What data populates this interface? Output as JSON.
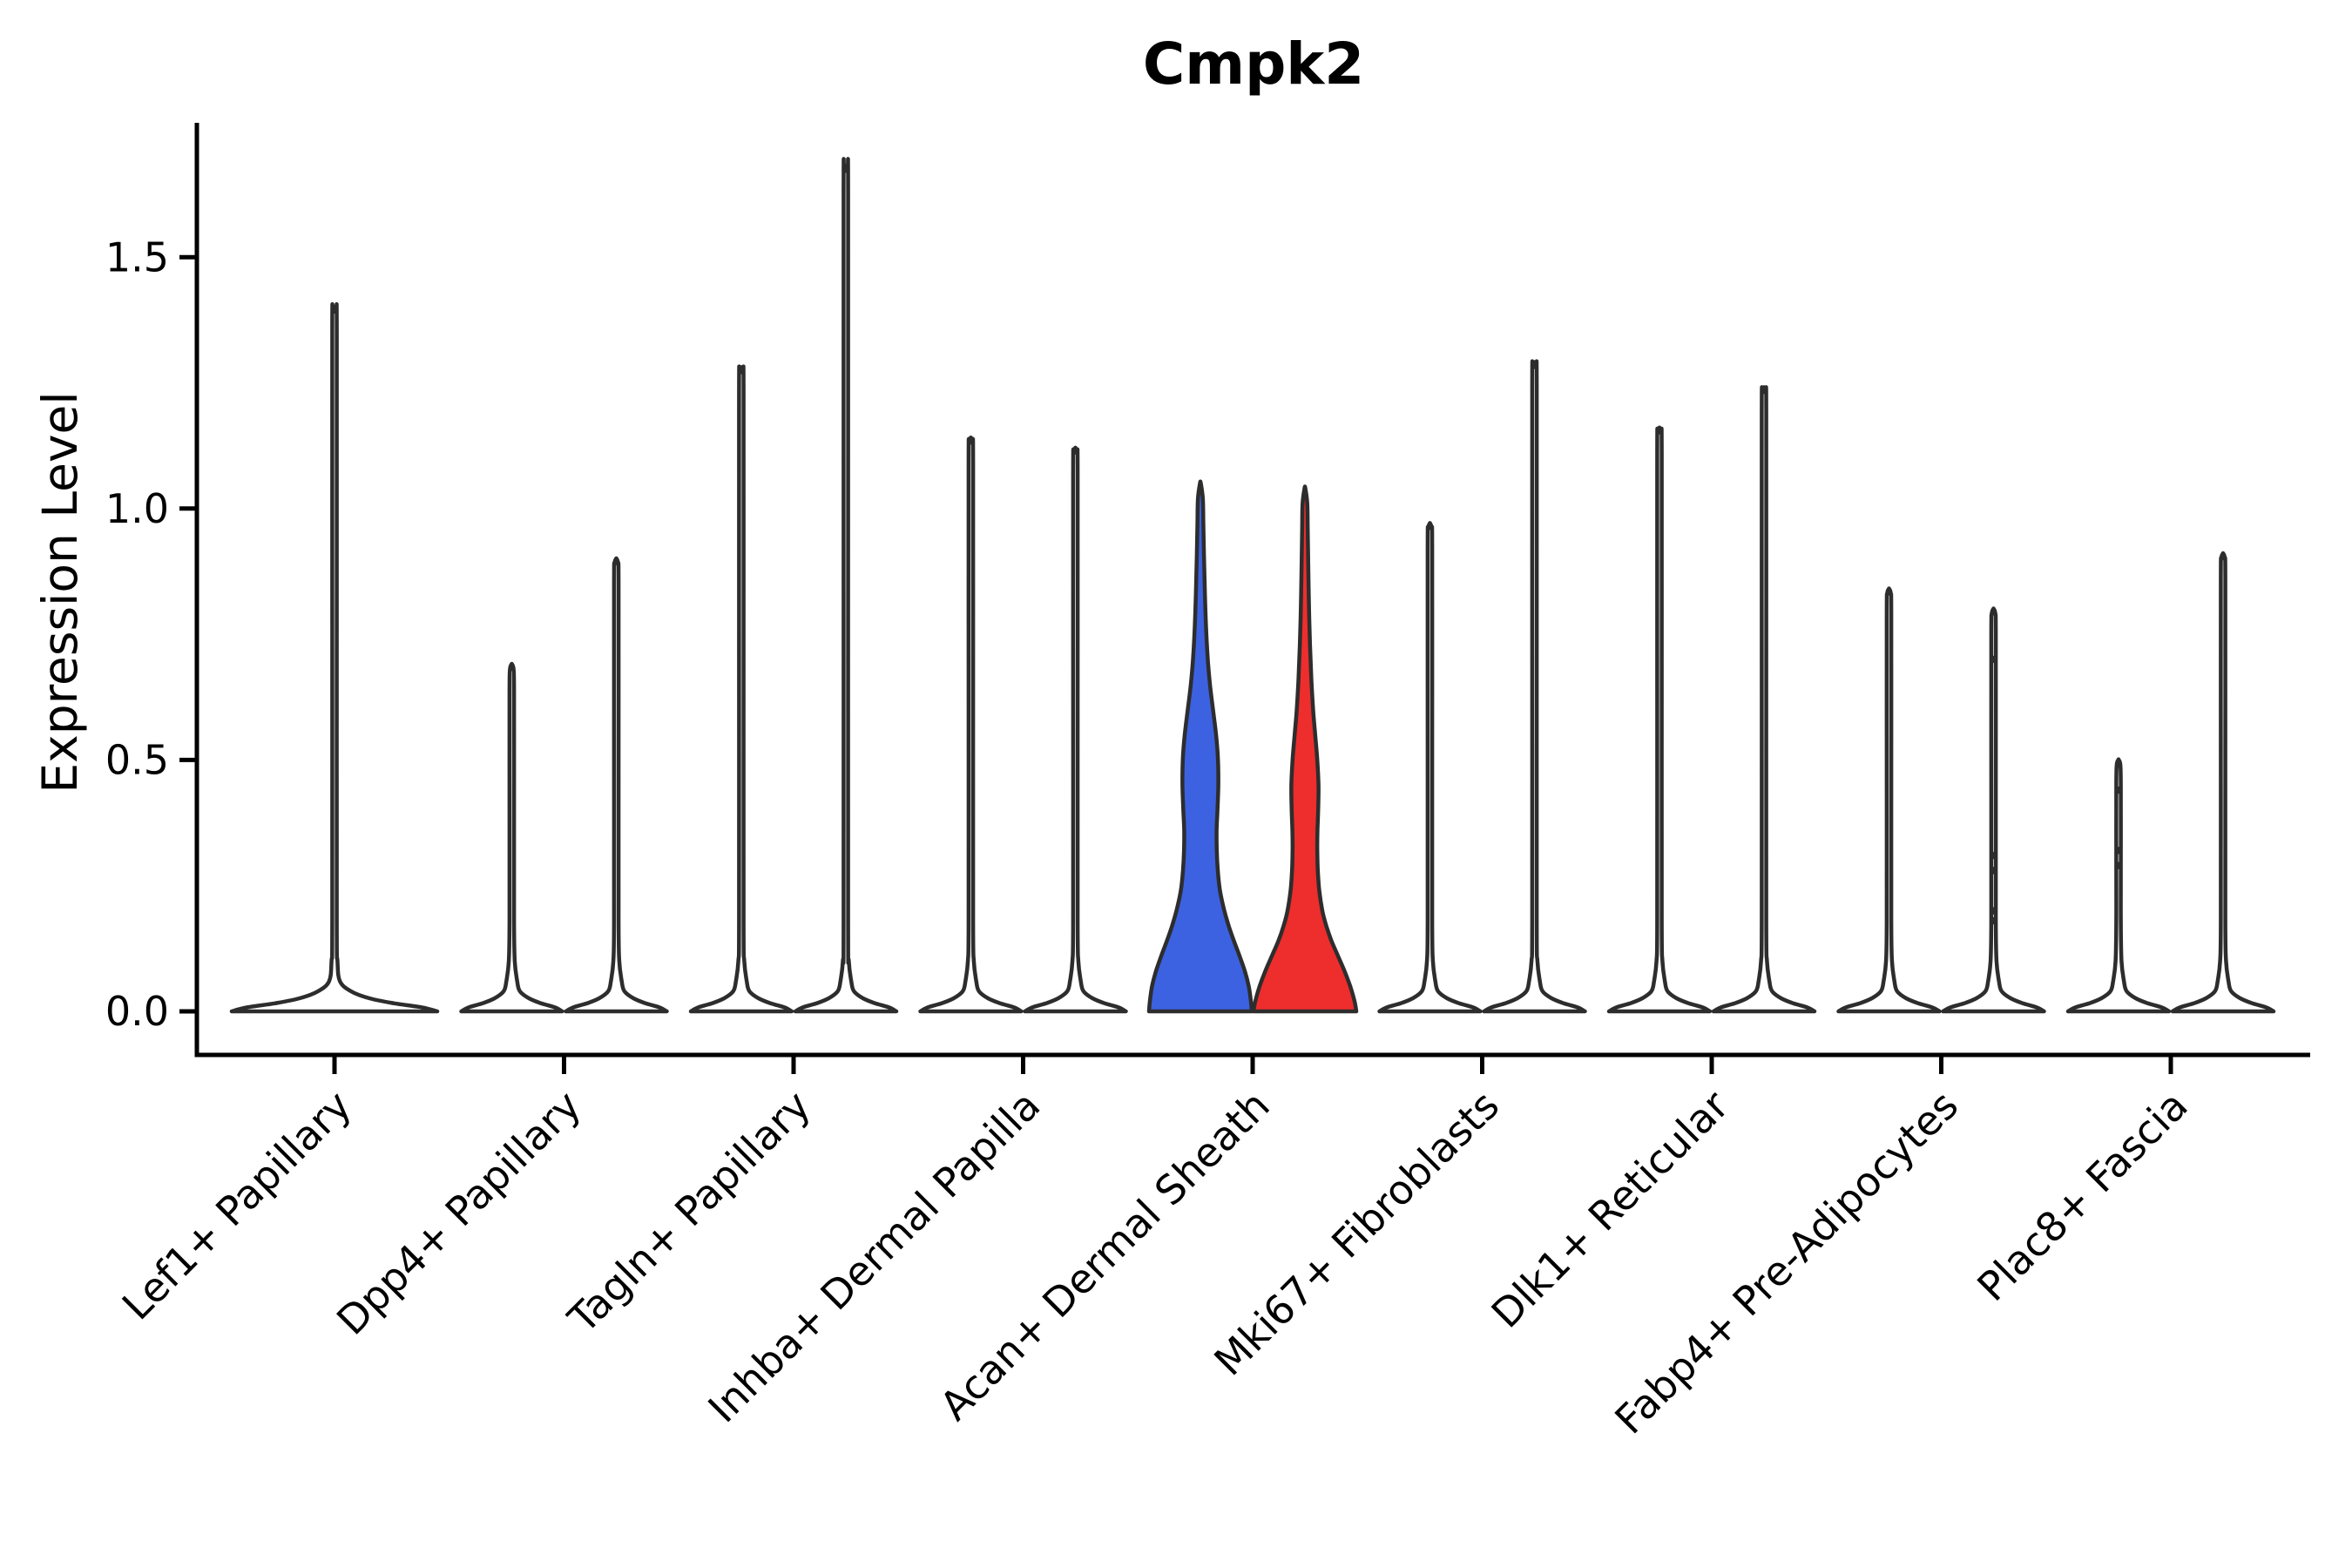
{
  "chart_data": {
    "type": "violin",
    "title": "Cmpk2",
    "xlabel": "",
    "ylabel": "Expression Level",
    "ytick_labels": [
      "0.0",
      "0.5",
      "1.0",
      "1.5"
    ],
    "ytick_values": [
      0.0,
      0.5,
      1.0,
      1.5
    ],
    "ylim": [
      -0.09,
      1.77
    ],
    "grid": false,
    "legend": "none",
    "n_groups_per_category": 2,
    "categories": [
      "Lef1+ Papillary",
      "Dpp4+ Papillary",
      "Tagln+ Papillary",
      "Inhba+ Dermal Papilla",
      "Acan+ Dermal Sheath",
      "Mki67+ Fibroblasts",
      "Dlk1+ Reticular",
      "Fabp4+ Pre-Adipocytes",
      "Plac8+ Fascia"
    ],
    "colors": {
      "highlight_blue": "#3C62E2",
      "highlight_red": "#EE2D2D",
      "violin_fill_default": "#ffffff",
      "violin_outline": "#2D2D2D",
      "axis": "#000000",
      "text": "#000000",
      "background": "#ffffff"
    },
    "highlighted_category": "Acan+ Dermal Sheath",
    "violins": [
      {
        "category": "Lef1+ Papillary",
        "slot": "full",
        "max_expression": 1.4,
        "fill": "#ffffff",
        "shape": "spike"
      },
      {
        "category": "Dpp4+ Papillary",
        "slot": "left",
        "max_expression": 0.69,
        "fill": "#ffffff",
        "shape": "spike"
      },
      {
        "category": "Dpp4+ Papillary",
        "slot": "right",
        "max_expression": 0.9,
        "fill": "#ffffff",
        "shape": "spike"
      },
      {
        "category": "Tagln+ Papillary",
        "slot": "left",
        "max_expression": 1.28,
        "fill": "#ffffff",
        "shape": "spike"
      },
      {
        "category": "Tagln+ Papillary",
        "slot": "right",
        "max_expression": 1.68,
        "fill": "#ffffff",
        "shape": "spike"
      },
      {
        "category": "Inhba+ Dermal Papilla",
        "slot": "left",
        "max_expression": 1.14,
        "fill": "#ffffff",
        "shape": "spike"
      },
      {
        "category": "Inhba+ Dermal Papilla",
        "slot": "right",
        "max_expression": 1.12,
        "fill": "#ffffff",
        "shape": "spike"
      },
      {
        "category": "Acan+ Dermal Sheath",
        "slot": "left",
        "max_expression": 1.05,
        "fill": "#3C62E2",
        "shape": "bulge_wide"
      },
      {
        "category": "Acan+ Dermal Sheath",
        "slot": "right",
        "max_expression": 1.04,
        "fill": "#EE2D2D",
        "shape": "bulge_narrow"
      },
      {
        "category": "Mki67+ Fibroblasts",
        "slot": "left",
        "max_expression": 0.97,
        "fill": "#ffffff",
        "shape": "spike"
      },
      {
        "category": "Mki67+ Fibroblasts",
        "slot": "right",
        "max_expression": 1.29,
        "fill": "#ffffff",
        "shape": "spike"
      },
      {
        "category": "Dlk1+ Reticular",
        "slot": "left",
        "max_expression": 1.16,
        "fill": "#ffffff",
        "shape": "spike"
      },
      {
        "category": "Dlk1+ Reticular",
        "slot": "right",
        "max_expression": 1.24,
        "fill": "#ffffff",
        "shape": "spike"
      },
      {
        "category": "Fabp4+ Pre-Adipocytes",
        "slot": "left",
        "max_expression": 0.84,
        "fill": "#ffffff",
        "shape": "spike"
      },
      {
        "category": "Fabp4+ Pre-Adipocytes",
        "slot": "right",
        "max_expression": 0.8,
        "fill": "#ffffff",
        "shape": "spike",
        "point_values": [
          0.7,
          0.31,
          0.28,
          0.2,
          0.18
        ]
      },
      {
        "category": "Plac8+ Fascia",
        "slot": "left",
        "max_expression": 0.5,
        "fill": "#ffffff",
        "shape": "spike",
        "point_values": [
          0.44,
          0.32,
          0.29
        ]
      },
      {
        "category": "Plac8+ Fascia",
        "slot": "right",
        "max_expression": 0.91,
        "fill": "#ffffff",
        "shape": "spike"
      }
    ]
  }
}
